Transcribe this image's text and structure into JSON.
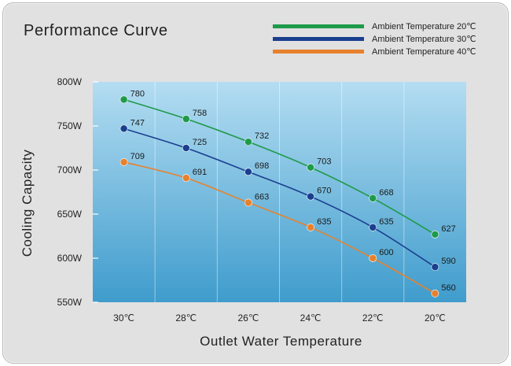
{
  "chart_data": {
    "type": "line",
    "title": "Performance Curve",
    "xlabel": "Outlet Water Temperature",
    "ylabel": "Cooling Capacity",
    "categories": [
      "30℃",
      "28℃",
      "26℃",
      "24℃",
      "22℃",
      "20℃"
    ],
    "ylim": [
      550,
      800
    ],
    "yticks": [
      550,
      600,
      650,
      700,
      750,
      800
    ],
    "ytick_labels": [
      "550W",
      "600W",
      "650W",
      "700W",
      "750W",
      "800W"
    ],
    "grid": "vertical",
    "legend_position": "top-right",
    "series": [
      {
        "name": "Ambient Temperature 20℃",
        "color": "#1f9a4a",
        "values": [
          780,
          758,
          732,
          703,
          668,
          627
        ]
      },
      {
        "name": "Ambient Temperature 30℃",
        "color": "#1b3f8f",
        "values": [
          747,
          725,
          698,
          670,
          635,
          590
        ]
      },
      {
        "name": "Ambient Temperature 40℃",
        "color": "#e8812c",
        "values": [
          709,
          691,
          663,
          635,
          600,
          560
        ]
      }
    ]
  }
}
